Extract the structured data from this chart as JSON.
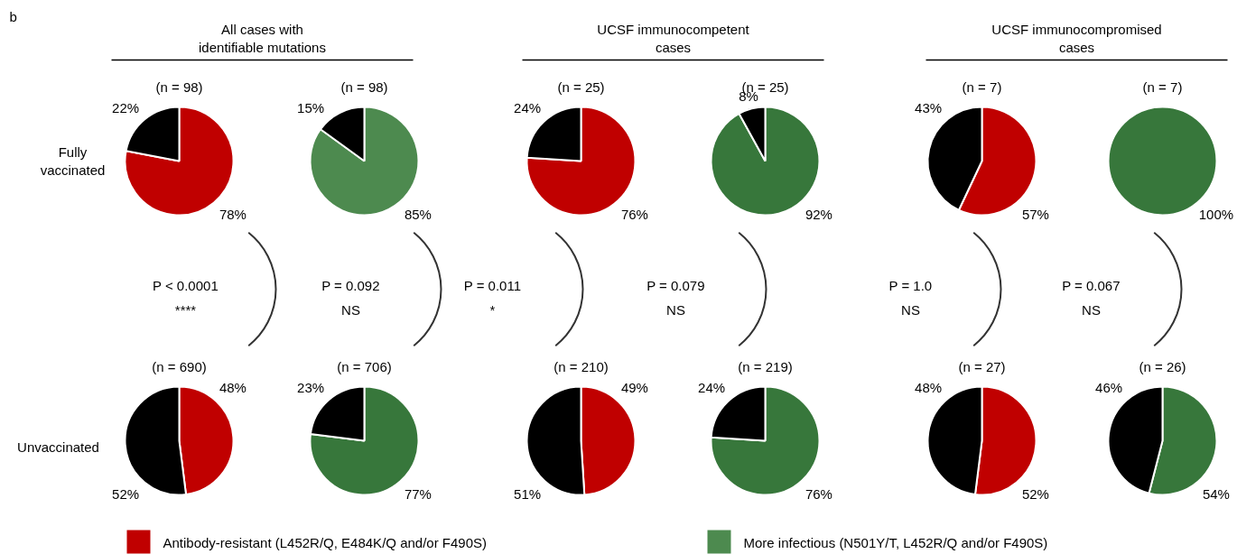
{
  "chart_data": [
    {
      "type": "other",
      "annotations": [
        "b",
        "All cases with\nidentifiable mutations",
        "UCSF immunocompetent\ncases",
        "UCSF immunocompromised\ncases",
        "Fully\nvaccinated",
        "Unvaccinated"
      ]
    },
    {
      "type": "pie",
      "title": "(n = 98)",
      "categories": [
        "Antibody-resistant (L452R/Q, E484K/Q and/or F490S)",
        null
      ],
      "values": [
        78,
        22
      ],
      "colors": [
        "#c00000",
        "#000000"
      ],
      "value_labels": [
        "78%",
        "22%"
      ],
      "annotations": [
        "P < 0.0001",
        "****"
      ],
      "legend": "bottom"
    },
    {
      "type": "pie",
      "title": "(n = 98)",
      "categories": [
        "More infectious (N501Y/T, L452R/Q and/or F490S)",
        null
      ],
      "values": [
        85,
        15
      ],
      "colors": [
        "#4d8a4f",
        "#000000"
      ],
      "value_labels": [
        "85%",
        "15%"
      ],
      "annotations": [
        "P = 0.092",
        "NS"
      ],
      "legend": "bottom"
    },
    {
      "type": "pie",
      "title": "(n = 25)",
      "categories": [
        null,
        null
      ],
      "values": [
        76,
        24
      ],
      "colors": [
        "#c00000",
        "#000000"
      ],
      "value_labels": [
        "76%",
        "24%"
      ],
      "annotations": [
        "P = 0.011",
        "*"
      ]
    },
    {
      "type": "pie",
      "title": "(n = 25)",
      "categories": [
        null,
        null
      ],
      "values": [
        92,
        8
      ],
      "colors": [
        "#37773b",
        "#000000"
      ],
      "value_labels": [
        "92%",
        "8%"
      ],
      "annotations": [
        "P = 0.079",
        "NS"
      ]
    },
    {
      "type": "pie",
      "title": "(n = 7)",
      "categories": [
        null,
        null
      ],
      "values": [
        57,
        43
      ],
      "colors": [
        "#c00000",
        "#000000"
      ],
      "value_labels": [
        "57%",
        "43%"
      ],
      "annotations": [
        "P = 1.0",
        "NS"
      ]
    },
    {
      "type": "pie",
      "title": "(n = 7)",
      "categories": [
        null,
        null
      ],
      "values": [
        100,
        0
      ],
      "colors": [
        "#37773b",
        "#000000"
      ],
      "value_labels": [
        "100%",
        null
      ],
      "annotations": [
        "P = 0.067",
        "NS"
      ]
    },
    {
      "type": "pie",
      "title": "(n = 690)",
      "categories": [
        null,
        null
      ],
      "values": [
        48,
        52
      ],
      "colors": [
        "#c00000",
        "#000000"
      ],
      "value_labels": [
        "48%",
        "52%"
      ]
    },
    {
      "type": "pie",
      "title": "(n = 706)",
      "categories": [
        null,
        null
      ],
      "values": [
        77,
        23
      ],
      "colors": [
        "#37773b",
        "#000000"
      ],
      "value_labels": [
        "77%",
        "23%"
      ]
    },
    {
      "type": "pie",
      "title": "(n = 210)",
      "categories": [
        null,
        null
      ],
      "values": [
        49,
        51
      ],
      "colors": [
        "#c00000",
        "#000000"
      ],
      "value_labels": [
        "49%",
        "51%"
      ]
    },
    {
      "type": "pie",
      "title": "(n = 219)",
      "categories": [
        null,
        null
      ],
      "values": [
        76,
        24
      ],
      "colors": [
        "#37773b",
        "#000000"
      ],
      "value_labels": [
        "76%",
        "24%"
      ]
    },
    {
      "type": "pie",
      "title": "(n = 27)",
      "categories": [
        null,
        null
      ],
      "values": [
        52,
        48
      ],
      "colors": [
        "#c00000",
        "#000000"
      ],
      "value_labels": [
        "52%",
        "48%"
      ]
    },
    {
      "type": "pie",
      "title": "(n = 26)",
      "categories": [
        null,
        null
      ],
      "values": [
        54,
        46
      ],
      "colors": [
        "#37773b",
        "#000000"
      ],
      "value_labels": [
        "54%",
        "46%"
      ]
    }
  ]
}
